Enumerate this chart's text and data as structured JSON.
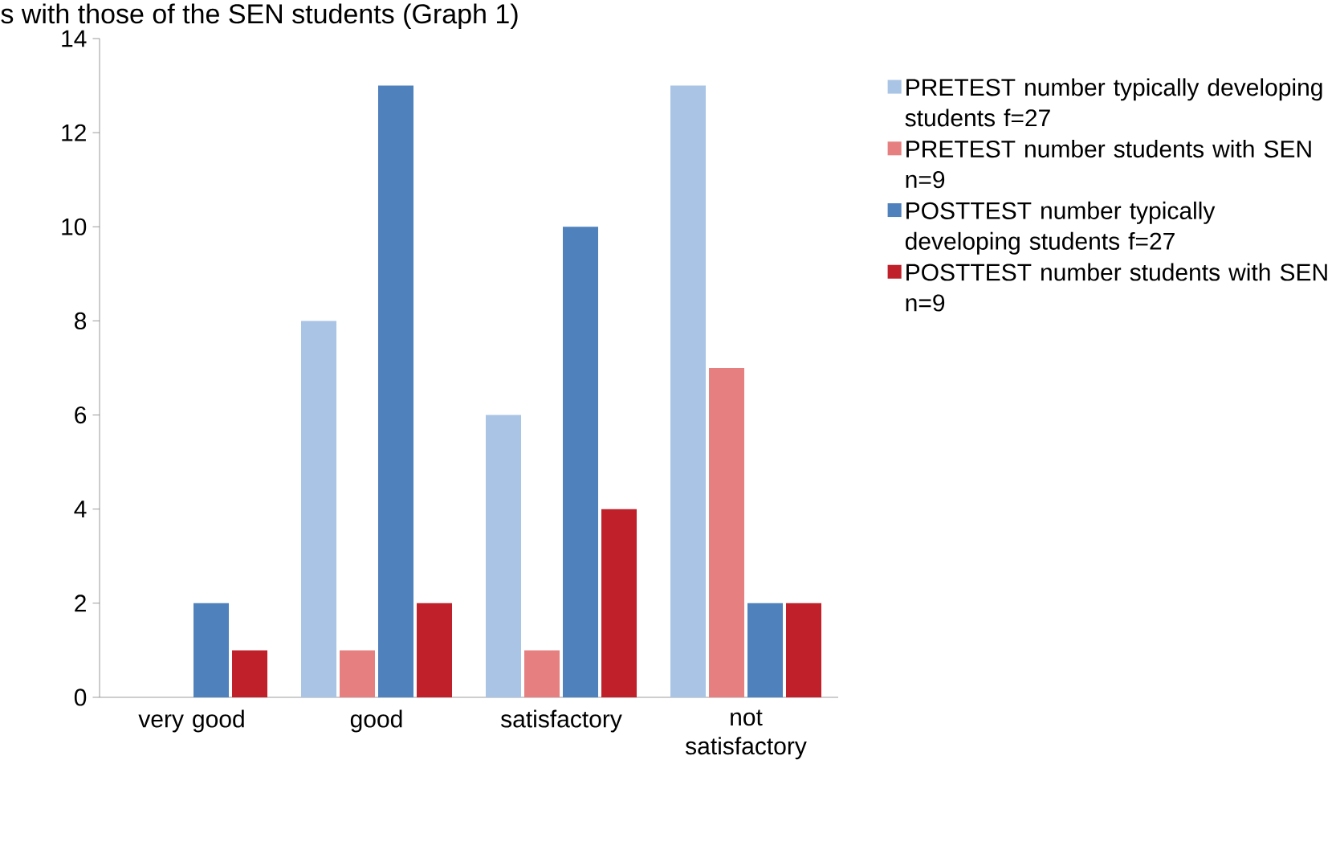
{
  "chart_data": {
    "type": "bar",
    "categories": [
      "very good",
      "good",
      "satisfactory",
      "not satisfactory"
    ],
    "series": [
      {
        "name": "PRETEST number typically developing students f=27",
        "color": "#a9c4e4",
        "values": [
          0,
          8,
          6,
          13
        ]
      },
      {
        "name": "PRETEST number students with SEN n=9",
        "color": "#e68080",
        "values": [
          0,
          1,
          1,
          7
        ]
      },
      {
        "name": "POSTTEST number typically developing students f=27",
        "color": "#4f81bd",
        "values": [
          2,
          13,
          10,
          2
        ]
      },
      {
        "name": "POSTTEST number students with SEN n=9",
        "color": "#c0202a",
        "values": [
          1,
          2,
          4,
          2
        ]
      }
    ],
    "ylim": [
      0,
      14
    ],
    "yticks": [
      0,
      2,
      4,
      6,
      8,
      10,
      12,
      14
    ],
    "grid": false,
    "legend": "right",
    "annotations": [
      "s with those of the SEN students (Graph 1)"
    ]
  }
}
